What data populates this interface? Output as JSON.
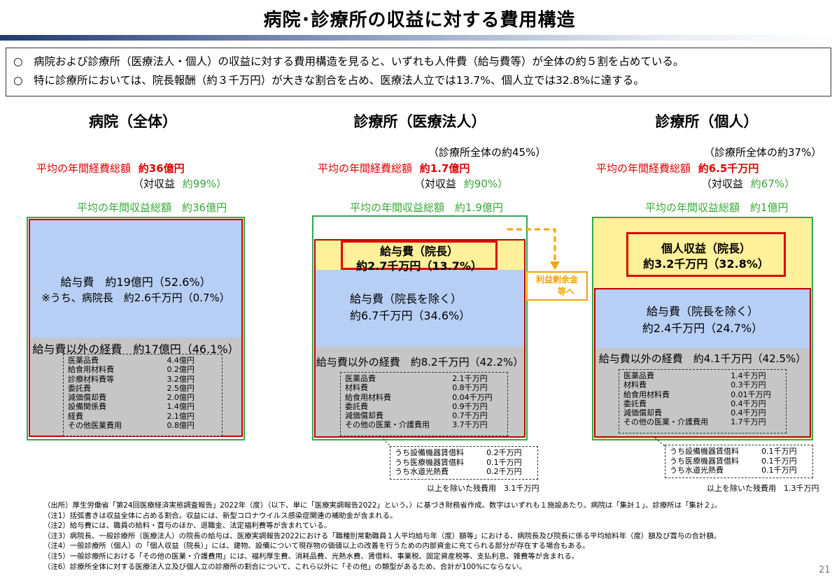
{
  "title": "病院･診療所の収益に対する費用構造",
  "summary": [
    "○　病院および診療所（医療法人・個人）の収益に対する費用構造を見ると、いずれも人件費（給与費等）が全体の約５割を占めている。",
    "○　特に診療所においては、院長報酬（約３千万円）が大きな割合を占め、医療法人立では13.7%、個人立では32.8%に達する。"
  ],
  "colors": {
    "red": "#e00000",
    "green": "#36a836",
    "blue": "#b7cff4",
    "gray": "#c6c6c6",
    "yellow": "#fff09a",
    "orange": "#f4a300"
  },
  "hospital": {
    "header": "病院（全体）",
    "cost_label": "平均の年間経費総額",
    "cost_value": "約36億円",
    "ratio_label": "（対収益",
    "ratio_value": "約99%）",
    "revenue": "平均の年間収益総額　約36億円",
    "salary": "給与費　約19億円（52.6%）",
    "salary_note": "※うち、病院長　約2.6千万円（0.7%）",
    "other_cost": "給与費以外の経費　約17億円（46.1%）",
    "items": [
      [
        "医薬品費",
        "4.4億円"
      ],
      [
        "給食用材料費",
        "0.2億円"
      ],
      [
        "診療材料費等",
        "3.2億円"
      ],
      [
        "委託費",
        "2.5億円"
      ],
      [
        "減価償却費",
        "2.0億円"
      ],
      [
        "設備関係費",
        "1.4億円"
      ],
      [
        "経費",
        "2.1億円"
      ],
      [
        "その他医業費用",
        "0.8億円"
      ]
    ]
  },
  "corp": {
    "header": "診療所（医療法人）",
    "share": "（診療所全体の約45%）",
    "cost_label": "平均の年間経費総額",
    "cost_value": "約1.7億円",
    "ratio_label": "（対収益",
    "ratio_value": "約90%）",
    "revenue": "平均の年間収益総額　約1.9億円",
    "director_line1": "給与費（院長）",
    "director_line2": "約2.7千万円（13.7%）",
    "salary_line1": "給与費（院長を除く）",
    "salary_line2": "約6.7千万円（34.6%）",
    "other_cost": "給与費以外の経費　約8.2千万円（42.2%）",
    "profit_note_1": "利益剰余金",
    "profit_note_2": "等へ",
    "items": [
      [
        "医薬品費",
        "2.1千万円"
      ],
      [
        "材料費",
        "0.8千万円"
      ],
      [
        "給食用材料費",
        "0.04千万円"
      ],
      [
        "委託費",
        "0.9千万円"
      ],
      [
        "減価償却費",
        "0.7千万円"
      ],
      [
        "その他の医業・介護費用",
        "3.7千万円"
      ]
    ],
    "sub_items": [
      [
        "うち設備機器賃借料",
        "0.2千万円"
      ],
      [
        "うち医療機器賃借料",
        "0.1千万円"
      ],
      [
        "うち水道光熱費",
        "0.2千万円"
      ]
    ],
    "remainder": "以上を除いた残費用　3.1千万円"
  },
  "indiv": {
    "header": "診療所（個人）",
    "share": "（診療所全体の約37%）",
    "cost_label": "平均の年間経費総額",
    "cost_value": "約6.5千万円",
    "ratio_label": "（対収益",
    "ratio_value": "約67%）",
    "revenue": "平均の年間収益総額　約1億円",
    "director_line1": "個人収益（院長）",
    "director_line2": "約3.2千万円（32.8%）",
    "salary_line1": "給与費（院長を除く）",
    "salary_line2": "約2.4千万円（24.7%）",
    "other_cost": "給与費以外の経費　約4.1千万円（42.5%）",
    "items": [
      [
        "医薬品費",
        "1.4千万円"
      ],
      [
        "材料費",
        "0.3千万円"
      ],
      [
        "給食用材料費",
        "0.01千万円"
      ],
      [
        "委託費",
        "0.4千万円"
      ],
      [
        "減価償却費",
        "0.4千万円"
      ],
      [
        "その他の医業・介護費用",
        "1.7千万円"
      ]
    ],
    "sub_items": [
      [
        "うち設備機器賃借料",
        "0.1千万円"
      ],
      [
        "うち医療機器賃借料",
        "0.1千万円"
      ],
      [
        "うち水道光熱費",
        "0.1千万円"
      ]
    ],
    "remainder": "以上を除いた残費用　1.3千万円"
  },
  "notes": [
    "（出所）厚生労働省「第24回医療経済実態調査報告」2022年（度）（以下、単に「医療実調報告2022」という。）に基づき財務省作成。数字はいずれも１施設あたり。病院は「集計１」、診療所は「集計２」。",
    "（注1）括弧書きは収益全体に占める割合。収益には、新型コロナウイルス感染症関連の補助金が含まれる。",
    "（注2）給与費には、職員の給料・賞与のほか、退職金、法定福利費等が含まれている。",
    "（注3）病院長、一般診療所（医療法人）の院長の給与は、医療実調報告2022における「職種別常勤職員１人平均給与年（度）額等」における、病院長及び院長に係る平均給料年（度）額及び賞与の合計額。",
    "（注4）一般診療所（個人）の「個人収益（院長）」には、建物、設備について現存物の価値以上の改善を行うための内部資金に充てられる部分が存在する場合もある。",
    "（注5）一般診療所における「その他の医業・介護費用」には、福利厚生費、消耗品費、光熱水費、賃借料、事業税、固定資産税等、支払利息、雑費等が含まれる。",
    "（注6）診療所全体に対する医療法人立及び個人立の診療所の割合について、これら以外に「その他」の類型があるため、合計が100%にならない。"
  ],
  "page_number": "21"
}
